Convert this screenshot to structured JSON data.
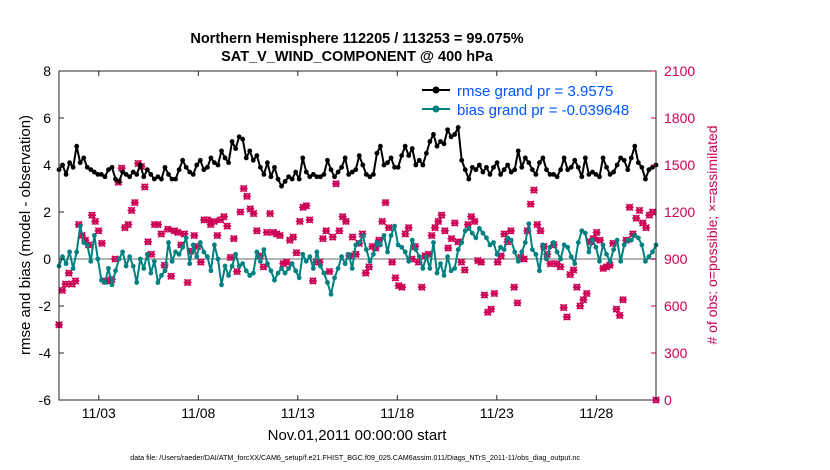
{
  "title_line1": "Northern Hemisphere 112205 / 113253 = 99.075%",
  "title_line2": "SAT_V_WIND_COMPONENT @ 400 hPa",
  "footer": "data file: /Users/raeder/DAI/ATM_forcXX/CAM6_setup/f.e21.FHIST_BGC.f09_025.CAM6assim.011/Diags_NTrS_2011-11/obs_diag_output.nc",
  "colors": {
    "rmse": "#000000",
    "bias": "#008080",
    "obs": "#cc0055",
    "zero_line": "#b4b4b4",
    "legend_text": "#0055ff"
  },
  "chart_data": {
    "type": "line",
    "xlabel": "Nov.01,2011 00:00:00 start",
    "ylabel": "rmse and bias (model - observation)",
    "y2label": "# of obs: o=possible; ×=assimilated",
    "xlim": [
      1,
      31
    ],
    "ylim": [
      -6,
      8
    ],
    "y2lim": [
      0,
      2100
    ],
    "xticks": [
      {
        "x": 3,
        "label": "11/03"
      },
      {
        "x": 8,
        "label": "11/08"
      },
      {
        "x": 13,
        "label": "11/13"
      },
      {
        "x": 18,
        "label": "11/18"
      },
      {
        "x": 23,
        "label": "11/23"
      },
      {
        "x": 28,
        "label": "11/28"
      }
    ],
    "yticks": [
      {
        "v": -6,
        "label": "-6"
      },
      {
        "v": -4,
        "label": "-4"
      },
      {
        "v": -2,
        "label": "-2"
      },
      {
        "v": 0,
        "label": "0"
      },
      {
        "v": 2,
        "label": "2"
      },
      {
        "v": 4,
        "label": "4"
      },
      {
        "v": 6,
        "label": "6"
      },
      {
        "v": 8,
        "label": "8"
      }
    ],
    "y2ticks": [
      {
        "v": 0,
        "label": "0"
      },
      {
        "v": 300,
        "label": "300"
      },
      {
        "v": 600,
        "label": "600"
      },
      {
        "v": 900,
        "label": "900"
      },
      {
        "v": 1200,
        "label": "1200"
      },
      {
        "v": 1500,
        "label": "1500"
      },
      {
        "v": 1800,
        "label": "1800"
      },
      {
        "v": 2100,
        "label": "2100"
      }
    ],
    "series": [
      {
        "name": "rmse grand pr = 3.9575",
        "key": "rmse",
        "marker": "dot",
        "values": [
          3.8,
          4.0,
          3.6,
          4.1,
          3.9,
          4.8,
          4.1,
          4.3,
          3.9,
          3.8,
          3.7,
          3.6,
          3.6,
          3.5,
          3.8,
          3.9,
          3.4,
          3.3,
          3.7,
          3.6,
          3.5,
          3.7,
          3.6,
          4.0,
          3.5,
          3.8,
          3.6,
          3.4,
          3.5,
          3.4,
          3.9,
          3.6,
          3.4,
          3.4,
          3.8,
          4.2,
          3.9,
          3.7,
          3.6,
          4.0,
          4.2,
          3.8,
          3.9,
          4.3,
          4.1,
          4.0,
          4.6,
          4.3,
          4.1,
          5.0,
          4.7,
          5.2,
          5.1,
          4.3,
          4.6,
          4.2,
          4.4,
          3.9,
          3.6,
          4.1,
          3.5,
          3.9,
          3.4,
          3.1,
          3.3,
          3.5,
          3.4,
          3.7,
          3.4,
          4.3,
          3.7,
          3.5,
          3.6,
          3.5,
          3.5,
          3.6,
          4.2,
          3.8,
          3.5,
          3.7,
          3.9,
          4.3,
          3.6,
          3.7,
          3.8,
          4.4,
          4.0,
          3.6,
          3.5,
          3.6,
          4.5,
          4.8,
          4.0,
          4.1,
          4.3,
          3.9,
          3.9,
          4.4,
          4.8,
          4.4,
          4.7,
          4.0,
          4.2,
          4.0,
          4.5,
          5.0,
          5.3,
          4.8,
          5.0,
          4.9,
          5.5,
          5.2,
          5.3,
          5.6,
          4.2,
          3.8,
          3.4,
          3.9,
          3.8,
          4.0,
          3.7,
          3.9,
          3.6,
          3.9,
          4.1,
          3.6,
          3.8,
          4.0,
          3.7,
          3.8,
          4.6,
          3.9,
          4.3,
          4.1,
          3.8,
          3.6,
          4.1,
          4.3,
          3.8,
          3.6,
          3.6,
          3.5,
          3.8,
          4.3,
          3.8,
          3.9,
          4.2,
          3.9,
          3.5,
          4.3,
          3.6,
          3.7,
          3.6,
          3.5,
          4.3,
          3.9,
          3.6,
          3.7,
          4.0,
          4.3,
          4.2,
          3.8,
          4.3,
          4.8,
          4.1,
          3.9,
          3.4,
          3.8,
          3.9,
          4.0
        ]
      },
      {
        "name": "bias grand pr = -0.039648",
        "key": "bias",
        "marker": "dot",
        "values": [
          -0.3,
          0.1,
          -0.2,
          0.3,
          -0.4,
          0.3,
          1.4,
          0.7,
          0.6,
          -0.1,
          1.0,
          0.0,
          -0.9,
          -1.0,
          -0.4,
          -1.1,
          -0.5,
          0.0,
          0.3,
          -0.3,
          0.1,
          -0.3,
          -1.0,
          0.0,
          -0.4,
          0.2,
          -0.6,
          -0.1,
          -1.0,
          -0.7,
          -0.5,
          0.7,
          -0.1,
          0.3,
          0.2,
          0.5,
          0.9,
          -0.2,
          0.6,
          0.1,
          0.7,
          0.3,
          0.1,
          -0.5,
          0.6,
          0.0,
          -1.1,
          -0.3,
          -0.7,
          -0.3,
          0.2,
          -0.3,
          -0.2,
          -0.5,
          -0.7,
          -0.6,
          0.3,
          -0.1,
          0.4,
          -0.2,
          -0.5,
          -0.9,
          -0.6,
          -0.4,
          -0.6,
          -0.4,
          -0.2,
          -0.5,
          -0.8,
          0.2,
          -0.1,
          0.1,
          -0.4,
          0.3,
          -0.3,
          -0.6,
          -1.0,
          -1.5,
          -0.8,
          -0.4,
          0.1,
          -0.2,
          0.2,
          -0.4,
          0.6,
          0.7,
          1.0,
          0.4,
          -0.1,
          0.2,
          0.7,
          0.6,
          1.0,
          0.3,
          1.0,
          1.4,
          0.6,
          0.5,
          0.3,
          -0.1,
          0.8,
          0.4,
          0.1,
          -0.4,
          0.1,
          -0.4,
          0.7,
          -0.6,
          -0.2,
          -0.7,
          0.1,
          -0.5,
          -0.4,
          0.4,
          0.7,
          1.2,
          1.3,
          1.1,
          0.9,
          1.3,
          1.1,
          0.9,
          0.6,
          0.7,
          0.2,
          0.5,
          0.4,
          0.9,
          0.8,
          0.3,
          -0.1,
          0.3,
          0.7,
          1.5,
          0.4,
          0.2,
          -0.5,
          0.6,
          0.0,
          0.5,
          0.7,
          0.3,
          0.0,
          0.6,
          0.5,
          0.1,
          -0.2,
          0.7,
          1.2,
          1.1,
          0.3,
          0.8,
          0.5,
          -0.1,
          0.6,
          0.2,
          -0.1,
          0.4,
          0.8,
          -0.1,
          0.6,
          0.8,
          0.8,
          1.0,
          0.9,
          0.6,
          -0.1,
          0.1,
          0.3,
          0.6
        ]
      },
      {
        "name": "obs_possible",
        "key": "obs_possible",
        "marker": "circle",
        "values": [
          480,
          700,
          740,
          810,
          740,
          760,
          1120,
          1050,
          1020,
          990,
          1180,
          1140,
          1080,
          1000,
          760,
          760,
          770,
          900,
          1390,
          1480,
          1100,
          1120,
          1210,
          1260,
          1510,
          1490,
          1360,
          1010,
          930,
          1120,
          1120,
          1060,
          860,
          1090,
          790,
          1080,
          1070,
          990,
          1060,
          750,
          950,
          1050,
          980,
          880,
          1150,
          1150,
          1120,
          1140,
          1050,
          1150,
          1170,
          1110,
          910,
          1030,
          820,
          1200,
          1350,
          1300,
          1220,
          1190,
          1080,
          920,
          850,
          1070,
          1190,
          1070,
          1060,
          1050,
          870,
          880,
          1020,
          1040,
          940,
          1140,
          1230,
          1240,
          1150,
          760,
          880,
          880,
          1030,
          1080,
          820,
          1040,
          1380,
          1080,
          1170,
          1140,
          920,
          1040,
          930,
          1000,
          1060,
          810,
          850,
          980,
          970,
          1020,
          1140,
          1260,
          1100,
          880,
          780,
          730,
          720,
          1060,
          1100,
          900,
          980,
          880,
          720,
          920,
          930,
          1050,
          1100,
          1140,
          1180,
          1080,
          970,
          1030,
          1130,
          1010,
          880,
          830,
          1120,
          1170,
          1140,
          890,
          880,
          670,
          560,
          580,
          680,
          880,
          920,
          1060,
          1010,
          1080,
          720,
          620,
          910,
          900,
          1080,
          1250,
          1340,
          1120,
          1080,
          980,
          930,
          870,
          990,
          870,
          850,
          590,
          530,
          800,
          830,
          720,
          600,
          640,
          680,
          1010,
          1030,
          1070,
          1020,
          840,
          850,
          860,
          1000,
          580,
          540,
          640,
          1020,
          1230,
          1060,
          1160,
          1210,
          1130,
          1100,
          1180,
          1200,
          0
        ]
      },
      {
        "name": "obs_assimilated",
        "key": "obs_assimilated",
        "marker": "cross",
        "values": [
          480,
          700,
          740,
          810,
          740,
          760,
          1120,
          1050,
          1020,
          990,
          1180,
          1140,
          1080,
          1000,
          760,
          760,
          770,
          900,
          1390,
          1480,
          1100,
          1120,
          1210,
          1260,
          1510,
          1490,
          1360,
          1010,
          930,
          1120,
          1120,
          1060,
          860,
          1090,
          790,
          1080,
          1070,
          990,
          1060,
          750,
          950,
          1050,
          980,
          880,
          1150,
          1150,
          1120,
          1140,
          1050,
          1150,
          1170,
          1110,
          910,
          1030,
          820,
          1200,
          1350,
          1300,
          1220,
          1190,
          1080,
          920,
          850,
          1070,
          1190,
          1070,
          1060,
          1050,
          870,
          880,
          1020,
          1040,
          940,
          1140,
          1230,
          1240,
          1150,
          760,
          880,
          880,
          1030,
          1080,
          820,
          1040,
          1380,
          1080,
          1170,
          1140,
          920,
          1040,
          930,
          1000,
          1060,
          810,
          850,
          980,
          970,
          1020,
          1140,
          1260,
          1100,
          880,
          780,
          730,
          720,
          1060,
          1100,
          900,
          980,
          880,
          720,
          920,
          930,
          1050,
          1100,
          1140,
          1180,
          1080,
          970,
          1030,
          1130,
          1010,
          880,
          830,
          1120,
          1170,
          1140,
          890,
          880,
          670,
          560,
          580,
          680,
          880,
          920,
          1060,
          1010,
          1080,
          720,
          620,
          910,
          900,
          1080,
          1250,
          1340,
          1120,
          1080,
          980,
          930,
          870,
          990,
          870,
          850,
          590,
          530,
          800,
          830,
          720,
          600,
          640,
          680,
          1010,
          1030,
          1070,
          1020,
          840,
          850,
          860,
          1000,
          580,
          540,
          640,
          1020,
          1230,
          1060,
          1160,
          1210,
          1130,
          1100,
          1180,
          1200,
          0
        ]
      }
    ],
    "legend_position": "top-right"
  }
}
